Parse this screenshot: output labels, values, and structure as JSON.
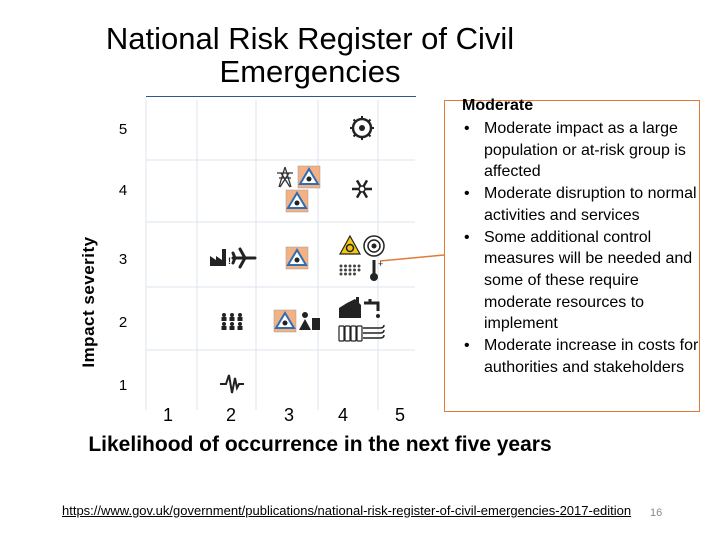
{
  "slide": {
    "title": "National Risk Register of Civil Emergencies",
    "source_url": "https://www.gov.uk/government/publications/national-risk-register-of-civil-emergencies-2017-edition",
    "slide_number": "16"
  },
  "callout": {
    "title": "Moderate",
    "bullets": [
      "Moderate impact as a large population or at-risk group is affected",
      "Moderate disruption to normal activities and services",
      "Some additional control measures will be needed and some of these require moderate resources to implement",
      "Moderate increase in costs for authorities and stakeholders"
    ],
    "border_color": "#e07b39"
  },
  "chart_data": {
    "type": "scatter",
    "xlabel": "Likelihood of occurrence in the next five years",
    "ylabel": "Impact severity",
    "x_ticks": [
      "1",
      "2",
      "3",
      "4",
      "5"
    ],
    "y_ticks": [
      "1",
      "2",
      "3",
      "4",
      "5"
    ],
    "xlim": [
      1,
      5
    ],
    "ylim": [
      1,
      5
    ],
    "grid": true,
    "points": [
      {
        "likelihood": 4,
        "severity": 5,
        "icon": "pandemic-virus-icon"
      },
      {
        "likelihood": 3,
        "severity": 4,
        "icon": "electricity-pylon-icon"
      },
      {
        "likelihood": 3,
        "severity": 4,
        "icon": "hazard-warning-triangle-icon"
      },
      {
        "likelihood": 3,
        "severity": 4,
        "icon": "hazard-warning-triangle-icon"
      },
      {
        "likelihood": 4,
        "severity": 4,
        "icon": "snowflake-icon"
      },
      {
        "likelihood": 2,
        "severity": 3,
        "icon": "industrial-accident-icon"
      },
      {
        "likelihood": 2,
        "severity": 3,
        "icon": "aircraft-icon"
      },
      {
        "likelihood": 3,
        "severity": 3,
        "icon": "hazard-warning-triangle-icon"
      },
      {
        "likelihood": 4,
        "severity": 3,
        "icon": "biohazard-icon"
      },
      {
        "likelihood": 4,
        "severity": 3,
        "icon": "radiation-icon"
      },
      {
        "likelihood": 4,
        "severity": 3,
        "icon": "dust-cloud-icon"
      },
      {
        "likelihood": 4,
        "severity": 3,
        "icon": "thermometer-icon"
      },
      {
        "likelihood": 2,
        "severity": 2,
        "icon": "crowd-icon"
      },
      {
        "likelihood": 3,
        "severity": 2,
        "icon": "hazard-warning-triangle-icon"
      },
      {
        "likelihood": 3,
        "severity": 2,
        "icon": "public-disorder-icon"
      },
      {
        "likelihood": 4,
        "severity": 2,
        "icon": "industrial-action-icon"
      },
      {
        "likelihood": 4,
        "severity": 2,
        "icon": "drought-tap-icon"
      },
      {
        "likelihood": 4,
        "severity": 2,
        "icon": "fuel-shortage-icon"
      },
      {
        "likelihood": 4,
        "severity": 2,
        "icon": "wind-storm-icon"
      },
      {
        "likelihood": 2,
        "severity": 1,
        "icon": "earthquake-seismograph-icon"
      }
    ]
  }
}
